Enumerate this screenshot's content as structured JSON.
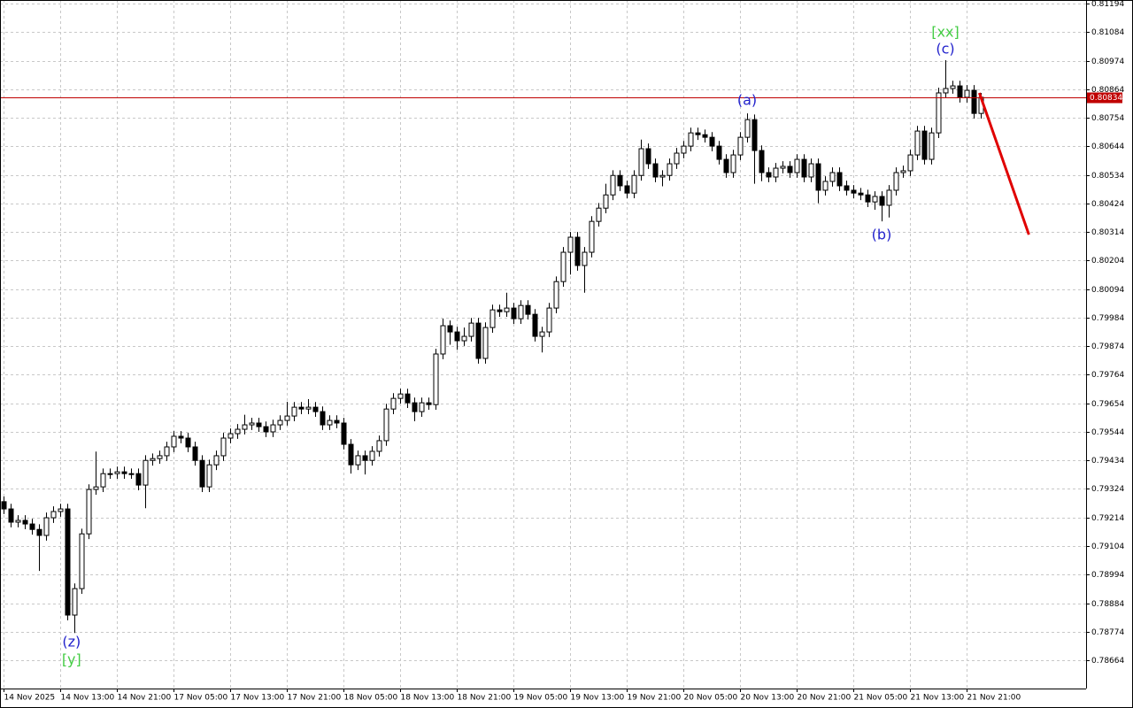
{
  "chart_data": {
    "type": "candlestick",
    "categories": [
      "14 Nov 2025",
      null,
      null,
      null,
      null,
      null,
      null,
      null,
      "14 Nov 13:00",
      null,
      null,
      null,
      null,
      null,
      null,
      null,
      "14 Nov 21:00",
      null,
      null,
      null,
      null,
      null,
      null,
      null,
      "17 Nov 05:00",
      null,
      null,
      null,
      null,
      null,
      null,
      null,
      "17 Nov 13:00",
      null,
      null,
      null,
      null,
      null,
      null,
      null,
      "17 Nov 21:00",
      null,
      null,
      null,
      null,
      null,
      null,
      null,
      "18 Nov 05:00",
      null,
      null,
      null,
      null,
      null,
      null,
      null,
      "18 Nov 13:00",
      null,
      null,
      null,
      null,
      null,
      null,
      null,
      "18 Nov 21:00",
      null,
      null,
      null,
      null,
      null,
      null,
      null,
      "19 Nov 05:00",
      null,
      null,
      null,
      null,
      null,
      null,
      null,
      "19 Nov 13:00",
      null,
      null,
      null,
      null,
      null,
      null,
      null,
      "19 Nov 21:00",
      null,
      null,
      null,
      null,
      null,
      null,
      null,
      "20 Nov 05:00",
      null,
      null,
      null,
      null,
      null,
      null,
      null,
      "20 Nov 13:00",
      null,
      null,
      null,
      null,
      null,
      null,
      null,
      "20 Nov 21:00",
      null,
      null,
      null,
      null,
      null,
      null,
      null,
      "21 Nov 05:00",
      null,
      null,
      null,
      null,
      null,
      null,
      null,
      "21 Nov 13:00",
      null,
      null,
      null,
      null,
      null,
      null,
      null,
      "21 Nov 21:00",
      null,
      null
    ],
    "open": [
      0.79275,
      0.79247,
      0.79196,
      0.79203,
      0.79189,
      0.79168,
      0.79145,
      0.79213,
      0.79237,
      0.79247,
      0.78838,
      0.7894,
      0.79151,
      0.79322,
      0.79332,
      0.79383,
      0.79383,
      0.7939,
      0.79383,
      0.79383,
      0.79339,
      0.79434,
      0.79441,
      0.79452,
      0.79486,
      0.79527,
      0.7952,
      0.79486,
      0.79434,
      0.79332,
      0.79417,
      0.79452,
      0.7952,
      0.79537,
      0.79554,
      0.79571,
      0.79578,
      0.79564,
      0.79544,
      0.79571,
      0.79588,
      0.79605,
      0.79639,
      0.79632,
      0.79639,
      0.79622,
      0.79571,
      0.79588,
      0.79578,
      0.79496,
      0.79417,
      0.79452,
      0.79434,
      0.79469,
      0.7951,
      0.79632,
      0.79673,
      0.7969,
      0.79656,
      0.79622,
      0.79656,
      0.79649,
      0.79844,
      0.79953,
      0.79929,
      0.79895,
      0.79912,
      0.79963,
      0.79827,
      0.79946,
      0.80014,
      0.80007,
      0.80021,
      0.7998,
      0.80031,
      0.79997,
      0.79912,
      0.79929,
      0.80021,
      0.80123,
      0.80236,
      0.80294,
      0.80185,
      0.80236,
      0.80355,
      0.80406,
      0.80457,
      0.80532,
      0.80492,
      0.80464,
      0.80532,
      0.80635,
      0.80577,
      0.80526,
      0.80532,
      0.80577,
      0.80618,
      0.80645,
      0.80696,
      0.80689,
      0.80679,
      0.80645,
      0.80594,
      0.80543,
      0.80611,
      0.80679,
      0.80747,
      0.80628,
      0.80543,
      0.80526,
      0.8056,
      0.80567,
      0.80543,
      0.80594,
      0.80526,
      0.80577,
      0.80475,
      0.80509,
      0.80543,
      0.80492,
      0.80475,
      0.80464,
      0.80457,
      0.8043,
      0.80451,
      0.80417,
      0.80475,
      0.80543,
      0.8055,
      0.80611,
      0.80703,
      0.80594,
      0.80696,
      0.8085,
      0.80867,
      0.80877,
      0.80833,
      0.8086,
      0.80771
    ],
    "high": [
      0.79295,
      0.79267,
      0.79223,
      0.79223,
      0.79209,
      0.79188,
      0.79233,
      0.79257,
      0.79267,
      0.79267,
      0.7896,
      0.79171,
      0.79342,
      0.79468,
      0.79403,
      0.79403,
      0.7941,
      0.7941,
      0.79403,
      0.79403,
      0.79454,
      0.79461,
      0.79472,
      0.79506,
      0.79547,
      0.79547,
      0.7954,
      0.79506,
      0.79454,
      0.79437,
      0.79472,
      0.7954,
      0.79557,
      0.79574,
      0.7961,
      0.79598,
      0.79598,
      0.79584,
      0.79591,
      0.79608,
      0.7966,
      0.79659,
      0.79659,
      0.7967,
      0.79659,
      0.79642,
      0.79608,
      0.79608,
      0.79598,
      0.79516,
      0.79472,
      0.79472,
      0.79489,
      0.7953,
      0.79652,
      0.79693,
      0.7971,
      0.7971,
      0.79676,
      0.79676,
      0.79676,
      0.79864,
      0.7998,
      0.79973,
      0.79949,
      0.79946,
      0.79983,
      0.79983,
      0.79966,
      0.80034,
      0.80034,
      0.8008,
      0.80041,
      0.80051,
      0.80051,
      0.80017,
      0.79949,
      0.80041,
      0.80143,
      0.80256,
      0.80314,
      0.80314,
      0.80256,
      0.80375,
      0.80426,
      0.805,
      0.80552,
      0.80552,
      0.80512,
      0.80552,
      0.8067,
      0.80655,
      0.80597,
      0.80552,
      0.80597,
      0.80638,
      0.80665,
      0.80716,
      0.80716,
      0.80709,
      0.80699,
      0.80665,
      0.80614,
      0.80631,
      0.80699,
      0.80771,
      0.80767,
      0.80648,
      0.80563,
      0.8058,
      0.80587,
      0.80587,
      0.80614,
      0.80614,
      0.80597,
      0.80597,
      0.80529,
      0.80563,
      0.80563,
      0.80512,
      0.80495,
      0.80484,
      0.80477,
      0.80471,
      0.80471,
      0.80495,
      0.80563,
      0.8057,
      0.80631,
      0.80723,
      0.80723,
      0.80716,
      0.8087,
      0.80976,
      0.80897,
      0.80897,
      0.8088,
      0.8088,
      0.8085
    ],
    "low": [
      0.79227,
      0.79176,
      0.79176,
      0.79169,
      0.79148,
      0.79008,
      0.79125,
      0.79193,
      0.79217,
      0.78818,
      0.78769,
      0.7892,
      0.79131,
      0.79302,
      0.79312,
      0.79363,
      0.79363,
      0.79363,
      0.79363,
      0.79319,
      0.7925,
      0.79414,
      0.79421,
      0.79432,
      0.79466,
      0.795,
      0.79466,
      0.79414,
      0.79312,
      0.79312,
      0.79397,
      0.79432,
      0.795,
      0.79517,
      0.79534,
      0.79551,
      0.79544,
      0.79524,
      0.79524,
      0.79551,
      0.79568,
      0.79585,
      0.79612,
      0.79612,
      0.79602,
      0.79551,
      0.79551,
      0.79558,
      0.79476,
      0.79383,
      0.79397,
      0.7938,
      0.79414,
      0.79449,
      0.7949,
      0.79612,
      0.79653,
      0.79636,
      0.79585,
      0.79602,
      0.79629,
      0.79629,
      0.79824,
      0.7988,
      0.7986,
      0.79875,
      0.79892,
      0.79807,
      0.79807,
      0.79926,
      0.79987,
      0.79987,
      0.7996,
      0.7996,
      0.79977,
      0.79892,
      0.7985,
      0.79909,
      0.80001,
      0.80103,
      0.8015,
      0.80165,
      0.8008,
      0.80216,
      0.80335,
      0.80386,
      0.80437,
      0.80472,
      0.80444,
      0.80444,
      0.80512,
      0.80557,
      0.80506,
      0.8049,
      0.80512,
      0.80557,
      0.80598,
      0.80625,
      0.80669,
      0.80659,
      0.80625,
      0.80574,
      0.80523,
      0.80523,
      0.80591,
      0.80659,
      0.805,
      0.8051,
      0.80506,
      0.80506,
      0.8054,
      0.80523,
      0.80523,
      0.80506,
      0.80506,
      0.80425,
      0.80455,
      0.80489,
      0.80472,
      0.80455,
      0.80444,
      0.80437,
      0.8041,
      0.804,
      0.80355,
      0.8037,
      0.80455,
      0.80523,
      0.8053,
      0.80591,
      0.80574,
      0.80574,
      0.80676,
      0.8083,
      0.80847,
      0.80813,
      0.80813,
      0.80751,
      0.80751
    ],
    "close": [
      0.79247,
      0.79196,
      0.79203,
      0.79189,
      0.79168,
      0.79145,
      0.79213,
      0.79237,
      0.79247,
      0.78838,
      0.7894,
      0.79151,
      0.79322,
      0.79332,
      0.79383,
      0.79383,
      0.7939,
      0.79383,
      0.79383,
      0.79339,
      0.79434,
      0.79441,
      0.79452,
      0.79486,
      0.79527,
      0.7952,
      0.79486,
      0.79434,
      0.79332,
      0.79417,
      0.79452,
      0.7952,
      0.79537,
      0.79554,
      0.79571,
      0.79578,
      0.79564,
      0.79544,
      0.79571,
      0.79588,
      0.79605,
      0.79639,
      0.79632,
      0.79639,
      0.79622,
      0.79571,
      0.79588,
      0.79578,
      0.79496,
      0.79417,
      0.79452,
      0.79434,
      0.79469,
      0.7951,
      0.79632,
      0.79673,
      0.7969,
      0.79656,
      0.79622,
      0.79656,
      0.79649,
      0.79844,
      0.79953,
      0.79929,
      0.79895,
      0.79912,
      0.79963,
      0.79827,
      0.79946,
      0.80014,
      0.80007,
      0.80021,
      0.7998,
      0.80031,
      0.79997,
      0.79912,
      0.79929,
      0.80021,
      0.80123,
      0.80236,
      0.80294,
      0.80185,
      0.80236,
      0.80355,
      0.80406,
      0.80457,
      0.80532,
      0.80492,
      0.80464,
      0.80532,
      0.80635,
      0.80577,
      0.80526,
      0.80532,
      0.80577,
      0.80618,
      0.80645,
      0.80696,
      0.80689,
      0.80679,
      0.80645,
      0.80594,
      0.80543,
      0.80611,
      0.80679,
      0.80747,
      0.80628,
      0.80543,
      0.80526,
      0.8056,
      0.80567,
      0.80543,
      0.80594,
      0.80526,
      0.80577,
      0.80475,
      0.80509,
      0.80543,
      0.80492,
      0.80475,
      0.80464,
      0.80457,
      0.8043,
      0.80451,
      0.80417,
      0.80475,
      0.80543,
      0.8055,
      0.80611,
      0.80703,
      0.80594,
      0.80696,
      0.8085,
      0.80867,
      0.80877,
      0.80833,
      0.8086,
      0.80771,
      0.80833
    ],
    "up_color": "#ffffff",
    "down_color": "#000000",
    "wick_color": "#000000",
    "ylim": [
      0.78555,
      0.81208
    ],
    "yticks": [
      0.78664,
      0.78774,
      0.78884,
      0.78994,
      0.79104,
      0.79214,
      0.79324,
      0.79434,
      0.79544,
      0.79654,
      0.79764,
      0.79874,
      0.79984,
      0.80094,
      0.80204,
      0.80314,
      0.80424,
      0.80534,
      0.80644,
      0.80754,
      0.80864,
      0.80974,
      0.81084,
      0.81194
    ],
    "grid": true,
    "current_price": 0.80834,
    "current_price_color": "#c00000",
    "forecast": {
      "color": "#e00000",
      "values": [
        0.8085,
        0.80304
      ]
    },
    "annotations": [
      {
        "text": "(z)",
        "color": "#2222cc"
      },
      {
        "text": "[y]",
        "color": "#44cc44"
      },
      {
        "text": "(a)",
        "color": "#2222cc"
      },
      {
        "text": "(b)",
        "color": "#2222cc"
      },
      {
        "text": "(c)",
        "color": "#2222cc"
      },
      {
        "text": "[xx]",
        "color": "#44cc44"
      }
    ]
  }
}
